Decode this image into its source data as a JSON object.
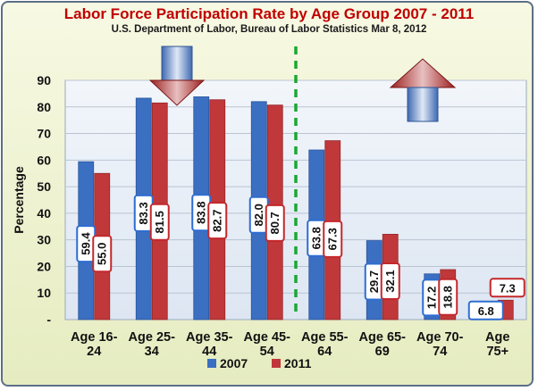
{
  "chart_data": {
    "type": "bar",
    "title": "Labor Force Participation Rate by Age Group 2007 - 2011",
    "subtitle": "U.S. Department of Labor, Bureau of Labor Statistics Mar 8, 2012",
    "xlabel": "",
    "ylabel": "Percentage",
    "ylim": [
      0,
      90
    ],
    "yticks": [
      "-",
      "10",
      "20",
      "30",
      "40",
      "50",
      "60",
      "70",
      "80",
      "90"
    ],
    "categories": [
      [
        "Age 16-",
        "24"
      ],
      [
        "Age 25-",
        "34"
      ],
      [
        "Age 35-",
        "44"
      ],
      [
        "Age 45-",
        "54"
      ],
      [
        "Age 55-",
        "64"
      ],
      [
        "Age 65-",
        "69"
      ],
      [
        "Age 70-",
        "74"
      ],
      [
        "Age",
        "75+"
      ]
    ],
    "series": [
      {
        "name": "2007",
        "color": "#3b6fc2",
        "values": [
          59.4,
          83.3,
          83.8,
          82.0,
          63.8,
          29.7,
          17.2,
          6.8
        ],
        "labels": [
          "59.4",
          "83.3",
          "83.8",
          "82.0",
          "63.8",
          "29.7",
          "17.2",
          "6.8"
        ]
      },
      {
        "name": "2011",
        "color": "#c0383a",
        "values": [
          55.0,
          81.5,
          82.7,
          80.7,
          67.3,
          32.1,
          18.8,
          7.3
        ],
        "labels": [
          "55.0",
          "81.5",
          "82.7",
          "80.7",
          "67.3",
          "32.1",
          "18.8",
          "7.3"
        ]
      }
    ],
    "grid": true,
    "legend_position": "bottom",
    "annotations": {
      "divider_line_color": "#1aa832",
      "down_arrow": "decrease",
      "up_arrow": "increase"
    }
  }
}
